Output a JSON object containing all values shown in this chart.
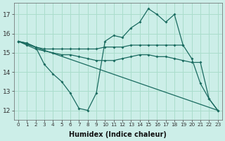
{
  "background_color": "#cceee8",
  "grid_color": "#aaddcc",
  "line_color": "#1a6b60",
  "xlabel": "Humidex (Indice chaleur)",
  "xlim": [
    -0.5,
    23.5
  ],
  "ylim": [
    11.5,
    17.6
  ],
  "yticks": [
    12,
    13,
    14,
    15,
    16,
    17
  ],
  "xticks": [
    0,
    1,
    2,
    3,
    4,
    5,
    6,
    7,
    8,
    9,
    10,
    11,
    12,
    13,
    14,
    15,
    16,
    17,
    18,
    19,
    20,
    21,
    22,
    23
  ],
  "line1_x": [
    0,
    1,
    2,
    3,
    4,
    5,
    6,
    7,
    8,
    9,
    10,
    11,
    12,
    13,
    14,
    15,
    16,
    17,
    18,
    19
  ],
  "line1_y": [
    15.6,
    15.5,
    15.3,
    15.2,
    15.2,
    15.2,
    15.2,
    15.2,
    15.2,
    15.2,
    15.3,
    15.3,
    15.3,
    15.4,
    15.4,
    15.4,
    15.4,
    15.4,
    15.4,
    15.4
  ],
  "line2_x": [
    0,
    1,
    2,
    3,
    4,
    5,
    6,
    7,
    8,
    9,
    10,
    11,
    12,
    13,
    14,
    15,
    16,
    17,
    18,
    19,
    20,
    21,
    22,
    23
  ],
  "line2_y": [
    15.6,
    15.4,
    15.2,
    15.1,
    15.0,
    14.9,
    14.9,
    14.8,
    14.7,
    14.6,
    14.6,
    14.6,
    14.7,
    14.8,
    14.9,
    14.9,
    14.8,
    14.8,
    14.7,
    14.6,
    14.5,
    14.5,
    12.6,
    12.0
  ],
  "line3_x": [
    0,
    1,
    2,
    3,
    4,
    5,
    6,
    7,
    8,
    9,
    10,
    11,
    12,
    13,
    14,
    15,
    16,
    17,
    18,
    19,
    20,
    21,
    22,
    23
  ],
  "line3_y": [
    15.6,
    15.5,
    15.3,
    14.4,
    13.9,
    13.5,
    12.9,
    12.1,
    12.0,
    12.9,
    15.6,
    15.9,
    15.8,
    16.3,
    16.6,
    17.3,
    17.0,
    16.6,
    17.0,
    15.4,
    14.7,
    13.4,
    12.6,
    12.0
  ],
  "line4_x": [
    0,
    23
  ],
  "line4_y": [
    15.6,
    12.0
  ]
}
